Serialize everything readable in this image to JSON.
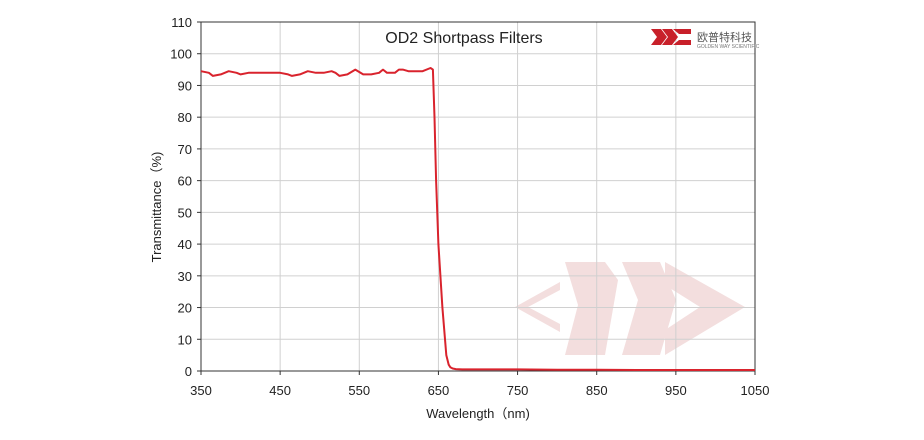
{
  "logo": {
    "cn": "欧普特科技",
    "en": "GOLDEN WAY SCIENTIFIC"
  },
  "colors": {
    "series": "#d9232d",
    "grid": "#d0d0d0",
    "axis": "#333333",
    "watermark": "#f3dede"
  },
  "chart_data": {
    "type": "line",
    "title": "OD2  Shortpass Filters",
    "xlabel": "Wavelength（nm)",
    "ylabel": "Transmittance（%)",
    "xlim": [
      350,
      1050
    ],
    "ylim": [
      0,
      110
    ],
    "xticks": [
      350,
      450,
      550,
      650,
      750,
      850,
      950,
      1050
    ],
    "yticks": [
      0,
      10,
      20,
      30,
      40,
      50,
      60,
      70,
      80,
      90,
      100,
      110
    ],
    "grid": true,
    "series": [
      {
        "name": "",
        "x": [
          350,
          360,
          365,
          375,
          385,
          395,
          400,
          410,
          420,
          430,
          440,
          450,
          460,
          465,
          475,
          485,
          495,
          505,
          515,
          520,
          525,
          535,
          545,
          555,
          565,
          575,
          580,
          585,
          595,
          600,
          605,
          612,
          620,
          630,
          640,
          643,
          645,
          647,
          650,
          655,
          660,
          663,
          665,
          668,
          672,
          680,
          700,
          750,
          800,
          850,
          900,
          950,
          1000,
          1050
        ],
        "values": [
          94.5,
          94,
          93,
          93.5,
          94.5,
          94,
          93.5,
          94,
          94,
          94,
          94,
          94,
          93.5,
          93,
          93.5,
          94.5,
          94,
          94,
          94.5,
          94,
          93,
          93.5,
          95,
          93.5,
          93.5,
          94,
          95,
          94,
          94,
          95,
          95,
          94.5,
          94.5,
          94.5,
          95.5,
          95,
          80,
          60,
          40,
          20,
          5,
          2,
          1.2,
          0.8,
          0.6,
          0.5,
          0.5,
          0.5,
          0.4,
          0.4,
          0.3,
          0.3,
          0.3,
          0.3
        ]
      }
    ]
  }
}
